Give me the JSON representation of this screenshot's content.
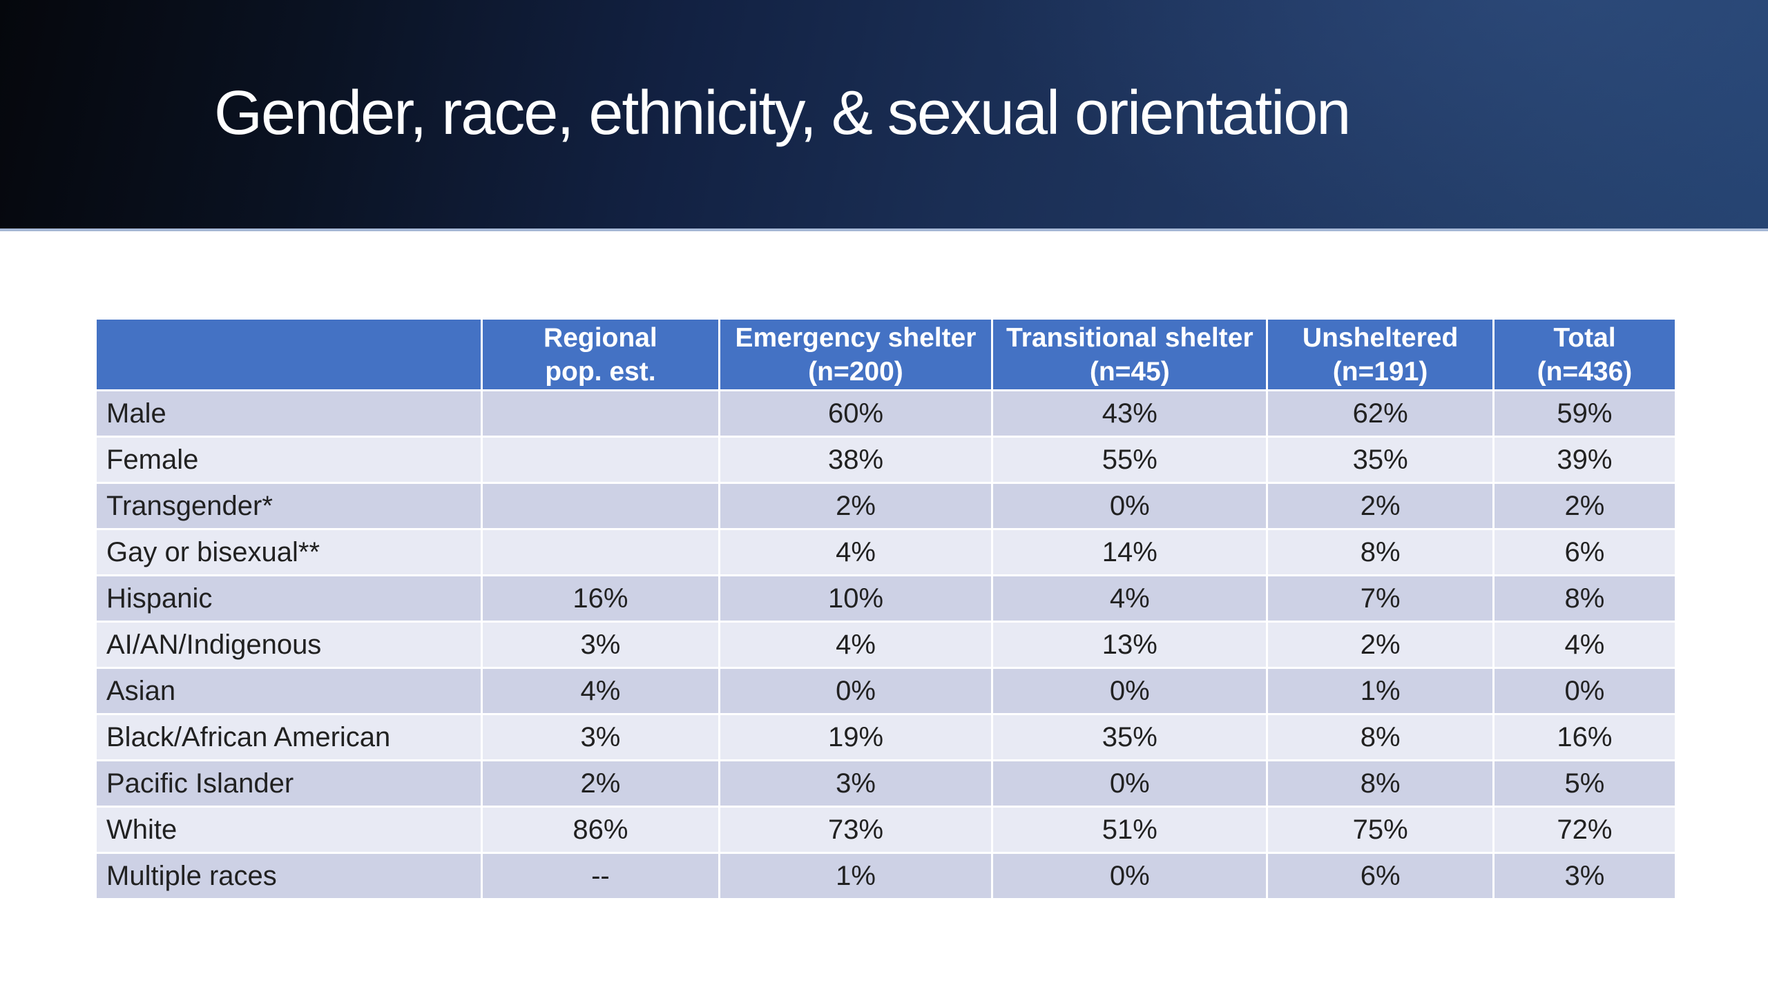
{
  "slide": {
    "title": "Gender, race, ethnicity, & sexual orientation"
  },
  "colors": {
    "header_bg": "#4472C4",
    "header_text": "#FFFFFF",
    "row_band_dark": "#CDD1E5",
    "row_band_light": "#E8EAF4",
    "body_text": "#212121",
    "banner_gradient_start": "#05070C",
    "banner_gradient_end": "#254371",
    "banner_edge_line": "#A6B8D6",
    "slide_background": "#FFFFFF"
  },
  "table": {
    "columns": [
      {
        "line1": "",
        "line2": ""
      },
      {
        "line1": "Regional",
        "line2": "pop. est."
      },
      {
        "line1": "Emergency shelter",
        "line2": "(n=200)"
      },
      {
        "line1": "Transitional shelter",
        "line2": "(n=45)"
      },
      {
        "line1": "Unsheltered",
        "line2": "(n=191)"
      },
      {
        "line1": "Total",
        "line2": "(n=436)"
      }
    ],
    "rows": [
      {
        "label": "Male",
        "values": [
          "",
          "60%",
          "43%",
          "62%",
          "59%"
        ]
      },
      {
        "label": "Female",
        "values": [
          "",
          "38%",
          "55%",
          "35%",
          "39%"
        ]
      },
      {
        "label": "Transgender*",
        "values": [
          "",
          "2%",
          "0%",
          "2%",
          "2%"
        ]
      },
      {
        "label": "Gay or bisexual**",
        "values": [
          "",
          "4%",
          "14%",
          "8%",
          "6%"
        ]
      },
      {
        "label": "Hispanic",
        "values": [
          "16%",
          "10%",
          "4%",
          "7%",
          "8%"
        ]
      },
      {
        "label": "AI/AN/Indigenous",
        "values": [
          "3%",
          "4%",
          "13%",
          "2%",
          "4%"
        ]
      },
      {
        "label": "Asian",
        "values": [
          "4%",
          "0%",
          "0%",
          "1%",
          "0%"
        ]
      },
      {
        "label": "Black/African American",
        "values": [
          "3%",
          "19%",
          "35%",
          "8%",
          "16%"
        ]
      },
      {
        "label": "Pacific Islander",
        "values": [
          "2%",
          "3%",
          "0%",
          "8%",
          "5%"
        ]
      },
      {
        "label": "White",
        "values": [
          "86%",
          "73%",
          "51%",
          "75%",
          "72%"
        ]
      },
      {
        "label": "Multiple races",
        "values": [
          "--",
          "1%",
          "0%",
          "6%",
          "3%"
        ]
      }
    ]
  }
}
